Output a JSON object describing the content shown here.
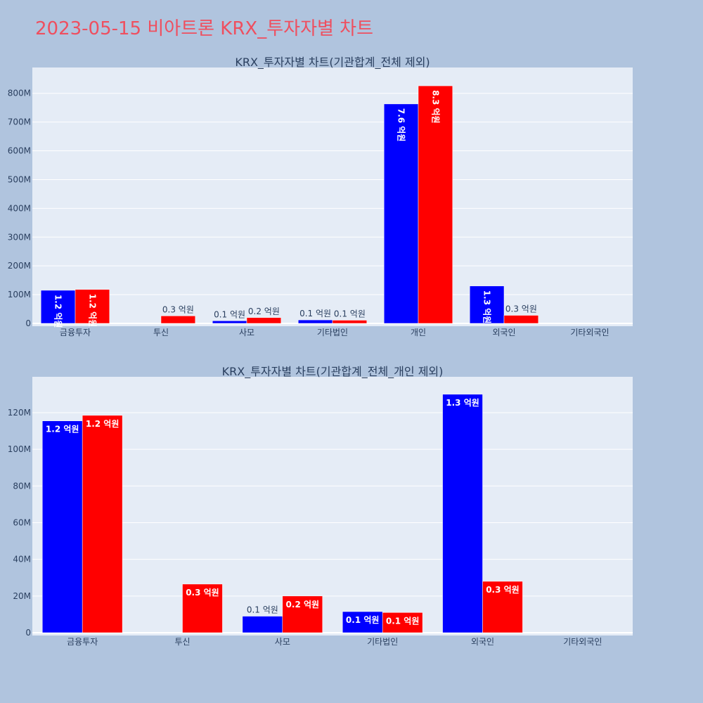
{
  "page_title": "2023-05-15 비아트론 KRX_투자자별 차트",
  "colors": {
    "buy": "#0000ff",
    "sell": "#ff0000",
    "title": "#ef4f5f"
  },
  "chart_data": [
    {
      "type": "bar",
      "title": "KRX_투자자별 차트(기관합계_전체 제외)",
      "categories": [
        "금융투자",
        "투신",
        "사모",
        "기타법인",
        "개인",
        "외국인",
        "기타외국인"
      ],
      "series": [
        {
          "color": "#0000ff",
          "values": [
            115000000,
            0,
            9000000,
            12000000,
            763000000,
            130000000,
            0
          ],
          "labels": [
            "1.2 억원",
            "",
            "0.1 억원",
            "0.1 억원",
            "7.6 억원",
            "1.3 억원",
            ""
          ]
        },
        {
          "color": "#ff0000",
          "values": [
            118000000,
            26000000,
            20000000,
            11000000,
            826000000,
            28000000,
            0
          ],
          "labels": [
            "1.2 억원",
            "0.3 억원",
            "0.2 억원",
            "0.1 억원",
            "8.3 억원",
            "0.3 억원",
            ""
          ]
        }
      ],
      "yaxis": {
        "range": [
          0,
          880000000
        ],
        "ticks": [
          0,
          100000000,
          200000000,
          300000000,
          400000000,
          500000000,
          600000000,
          700000000,
          800000000
        ],
        "tick_labels": [
          "0",
          "100M",
          "200M",
          "300M",
          "400M",
          "500M",
          "600M",
          "700M",
          "800M"
        ]
      },
      "grid": true
    },
    {
      "type": "bar",
      "title": "KRX_투자자별 차트(기관합계_전체_개인 제외)",
      "categories": [
        "금융투자",
        "투신",
        "사모",
        "기타법인",
        "외국인",
        "기타외국인"
      ],
      "series": [
        {
          "color": "#0000ff",
          "values": [
            115500000,
            0,
            9000000,
            11500000,
            130000000,
            0
          ],
          "labels": [
            "1.2 억원",
            "",
            "0.1 억원",
            "0.1 억원",
            "1.3 억원",
            ""
          ]
        },
        {
          "color": "#ff0000",
          "values": [
            118500000,
            26500000,
            20000000,
            11000000,
            28000000,
            0
          ],
          "labels": [
            "1.2 억원",
            "0.3 억원",
            "0.2 억원",
            "0.1 억원",
            "0.3 억원",
            ""
          ]
        }
      ],
      "yaxis": {
        "range": [
          0,
          138000000
        ],
        "ticks": [
          0,
          20000000,
          40000000,
          60000000,
          80000000,
          100000000,
          120000000
        ],
        "tick_labels": [
          "0",
          "20M",
          "40M",
          "60M",
          "80M",
          "100M",
          "120M"
        ]
      },
      "grid": true
    }
  ]
}
